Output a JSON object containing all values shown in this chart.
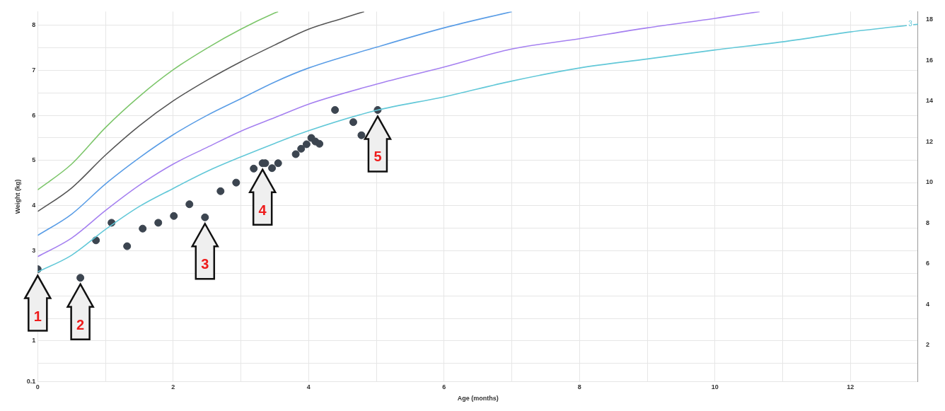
{
  "chart_data": {
    "type": "line",
    "xlabel": "Age (months)",
    "ylabel": "Weight (kg)",
    "xlim": [
      0,
      13
    ],
    "xticks": [
      0,
      {
        "value": 1,
        "label": null
      },
      2,
      {
        "value": 3,
        "label": null
      },
      4,
      {
        "value": 5,
        "label": null
      },
      6,
      {
        "value": 7,
        "label": null
      },
      8,
      {
        "value": 9,
        "label": null
      },
      10,
      {
        "value": 11,
        "label": null
      },
      12
    ],
    "ylim": [
      0.1,
      8.3
    ],
    "yticks": [
      0.1,
      {
        "value": 0.5,
        "label": null
      },
      1,
      {
        "value": 1.5,
        "label": null
      },
      {
        "value": 2,
        "label": null
      },
      {
        "value": 2.5,
        "label": null
      },
      3,
      {
        "value": 3.5,
        "label": null
      },
      4,
      {
        "value": 4.5,
        "label": null
      },
      5,
      {
        "value": 5.5,
        "label": null
      },
      6,
      {
        "value": 6.5,
        "label": null
      },
      7,
      {
        "value": 7.5,
        "label": null
      },
      8
    ],
    "y2lim": [
      0.2,
      18.4
    ],
    "y2ticks": [
      2,
      4,
      6,
      8,
      10,
      12,
      14,
      16,
      18
    ],
    "grid": true,
    "legend": false,
    "marker": "none",
    "line_style": "solid",
    "series": [
      {
        "color": "#7dc66b",
        "x": [
          0,
          0.5,
          1,
          1.5,
          2,
          2.5,
          3,
          3.5,
          3.55
        ],
        "values": [
          4.35,
          4.92,
          5.73,
          6.42,
          7.01,
          7.49,
          7.91,
          8.27,
          8.3
        ]
      },
      {
        "color": "#555555",
        "x": [
          0,
          0.5,
          1,
          1.5,
          2,
          2.5,
          3,
          3.5,
          4,
          4.5,
          4.82
        ],
        "values": [
          3.87,
          4.39,
          5.12,
          5.77,
          6.32,
          6.78,
          7.19,
          7.56,
          7.91,
          8.15,
          8.3
        ]
      },
      {
        "color": "#5a9de6",
        "x": [
          0,
          0.5,
          1,
          1.5,
          2,
          2.5,
          3,
          3.5,
          4,
          5,
          6,
          7
        ],
        "values": [
          3.34,
          3.81,
          4.48,
          5.06,
          5.57,
          6.0,
          6.37,
          6.74,
          7.05,
          7.51,
          7.94,
          8.3
        ]
      },
      {
        "color": "#a580f0",
        "x": [
          0,
          0.5,
          1,
          1.5,
          2,
          2.5,
          3,
          3.5,
          4,
          5,
          6,
          7,
          8,
          9,
          10,
          10.66
        ],
        "values": [
          2.87,
          3.28,
          3.89,
          4.45,
          4.92,
          5.29,
          5.65,
          5.95,
          6.25,
          6.69,
          7.07,
          7.47,
          7.7,
          7.94,
          8.15,
          8.3
        ]
      },
      {
        "name": "3",
        "color": "#62c8d8",
        "x": [
          0,
          0.5,
          1,
          1.5,
          2,
          2.5,
          3,
          3.5,
          4,
          5,
          6,
          7,
          8,
          9,
          10,
          11,
          12,
          13
        ],
        "values": [
          2.53,
          2.9,
          3.47,
          3.98,
          4.38,
          4.76,
          5.08,
          5.38,
          5.66,
          6.11,
          6.41,
          6.76,
          7.05,
          7.25,
          7.45,
          7.63,
          7.85,
          8.02
        ]
      },
      {
        "type": "scatter",
        "marker": "circle",
        "color": "#3c4550",
        "x": [
          0,
          0.63,
          0.86,
          1.09,
          1.32,
          1.55,
          1.78,
          2.01,
          2.24,
          2.47,
          2.7,
          2.93,
          3.19,
          3.32,
          3.36,
          3.46,
          3.55,
          3.81,
          3.89,
          3.97,
          4.04,
          4.1,
          4.16,
          4.39,
          4.66,
          4.78,
          5.02
        ],
        "values": [
          2.59,
          2.4,
          3.23,
          3.62,
          3.1,
          3.49,
          3.62,
          3.77,
          4.03,
          3.74,
          4.32,
          4.51,
          4.82,
          4.94,
          4.94,
          4.83,
          4.94,
          5.14,
          5.26,
          5.36,
          5.5,
          5.42,
          5.37,
          6.12,
          5.85,
          5.56,
          6.12
        ]
      }
    ],
    "annotations": [
      {
        "text": "1",
        "x": 0,
        "y": 2.59
      },
      {
        "text": "2",
        "x": 0.63,
        "y": 2.4
      },
      {
        "text": "3",
        "x": 2.47,
        "y": 3.74
      },
      {
        "text": "4",
        "x": 3.32,
        "y": 4.94
      },
      {
        "text": "5",
        "x": 5.02,
        "y": 6.12
      }
    ]
  }
}
